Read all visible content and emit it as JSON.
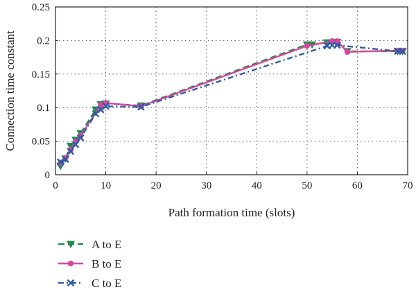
{
  "chart_data": {
    "type": "line",
    "title": "",
    "xlabel": "Path formation time (slots)",
    "ylabel": "Connection time constant",
    "xlim": [
      0,
      70
    ],
    "ylim": [
      0,
      0.25
    ],
    "xticks": [
      "0",
      "10",
      "20",
      "30",
      "40",
      "50",
      "60",
      "70"
    ],
    "yticks": [
      "0",
      "0.05",
      "0.1",
      "0.15",
      "0.2",
      "0.25"
    ],
    "grid": true,
    "legend_position": "bottom-left, below plot",
    "series": [
      {
        "name": "A to E",
        "color": "#1f8a4c",
        "line_style": "dashed",
        "marker": "triangle-down",
        "x": [
          1,
          2,
          3,
          4,
          5,
          8,
          9,
          10,
          17,
          50,
          51,
          54,
          55,
          56,
          58,
          68,
          69
        ],
        "y": [
          0.013,
          0.024,
          0.043,
          0.052,
          0.062,
          0.097,
          0.105,
          0.106,
          0.103,
          0.194,
          0.194,
          0.197,
          0.197,
          0.198,
          0.184,
          0.184,
          0.184
        ]
      },
      {
        "name": "B to E",
        "color": "#d6479c",
        "line_style": "solid",
        "marker": "circle",
        "x": [
          1,
          2,
          3,
          4,
          5,
          9,
          10,
          17,
          50,
          55,
          56,
          58,
          68,
          69
        ],
        "y": [
          0.018,
          0.025,
          0.037,
          0.049,
          0.058,
          0.104,
          0.107,
          0.102,
          0.192,
          0.199,
          0.199,
          0.183,
          0.185,
          0.185
        ]
      },
      {
        "name": "C to E",
        "color": "#2f5aa8",
        "line_style": "dash-dot",
        "marker": "x",
        "x": [
          1,
          2,
          3,
          4,
          5,
          8,
          9,
          10,
          17,
          54,
          55,
          56,
          68,
          69
        ],
        "y": [
          0.019,
          0.023,
          0.035,
          0.045,
          0.055,
          0.091,
          0.097,
          0.102,
          0.101,
          0.192,
          0.193,
          0.193,
          0.184,
          0.184
        ]
      }
    ]
  }
}
